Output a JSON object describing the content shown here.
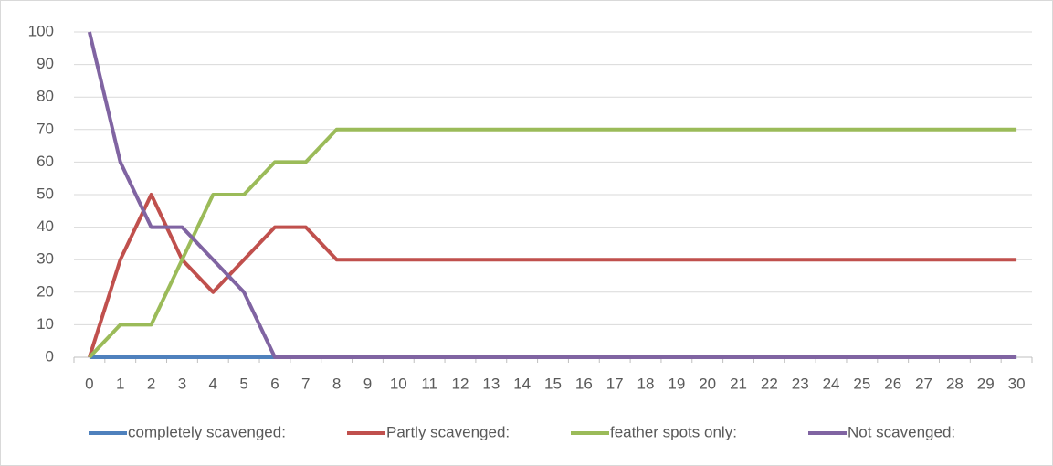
{
  "chart_data": {
    "type": "line",
    "categories": [
      0,
      1,
      2,
      3,
      4,
      5,
      6,
      7,
      8,
      9,
      10,
      11,
      12,
      13,
      14,
      15,
      16,
      17,
      18,
      19,
      20,
      21,
      22,
      23,
      24,
      25,
      26,
      27,
      28,
      29,
      30
    ],
    "series": [
      {
        "name": "completely scavenged:",
        "color": "#4f81bd",
        "values": [
          0,
          0,
          0,
          0,
          0,
          0,
          0,
          0,
          0,
          0,
          0,
          0,
          0,
          0,
          0,
          0,
          0,
          0,
          0,
          0,
          0,
          0,
          0,
          0,
          0,
          0,
          0,
          0,
          0,
          0,
          0
        ]
      },
      {
        "name": "Partly scavenged:",
        "color": "#c0504d",
        "values": [
          0,
          30,
          50,
          30,
          20,
          30,
          40,
          40,
          30,
          30,
          30,
          30,
          30,
          30,
          30,
          30,
          30,
          30,
          30,
          30,
          30,
          30,
          30,
          30,
          30,
          30,
          30,
          30,
          30,
          30,
          30
        ]
      },
      {
        "name": "feather spots only:",
        "color": "#9bbb59",
        "values": [
          0,
          10,
          10,
          30,
          50,
          50,
          60,
          60,
          70,
          70,
          70,
          70,
          70,
          70,
          70,
          70,
          70,
          70,
          70,
          70,
          70,
          70,
          70,
          70,
          70,
          70,
          70,
          70,
          70,
          70,
          70
        ]
      },
      {
        "name": "Not scavenged:",
        "color": "#8064a2",
        "values": [
          100,
          60,
          40,
          40,
          30,
          20,
          0,
          0,
          0,
          0,
          0,
          0,
          0,
          0,
          0,
          0,
          0,
          0,
          0,
          0,
          0,
          0,
          0,
          0,
          0,
          0,
          0,
          0,
          0,
          0,
          0
        ]
      }
    ],
    "ylim": [
      0,
      100
    ],
    "yticks": [
      0,
      10,
      20,
      30,
      40,
      50,
      60,
      70,
      80,
      90,
      100
    ],
    "grid": true,
    "legend": "bottom"
  }
}
